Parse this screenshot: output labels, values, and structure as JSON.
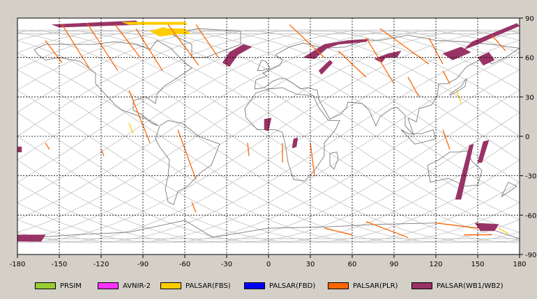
{
  "map": {
    "lon_ticks": [
      "-180",
      "-150",
      "-120",
      "-90",
      "-60",
      "-30",
      "0",
      "30",
      "60",
      "90",
      "120",
      "150",
      "180"
    ],
    "lat_ticks": [
      "90",
      "60",
      "30",
      "0",
      "-30",
      "-60",
      "-90"
    ],
    "colors": {
      "background": "#d4d0c8",
      "plot": "#ffffff",
      "grid": "#000000",
      "orbit_track": "#c0c0c0",
      "coastline": "#7a7a7a"
    }
  },
  "legend": {
    "items": [
      {
        "label": "PRSIM",
        "color": "#99cc33"
      },
      {
        "label": "AVNIR-2",
        "color": "#ff33ff"
      },
      {
        "label": "PALSAR(FBS)",
        "color": "#ffcc00"
      },
      {
        "label": "PALSAR(FBD)",
        "color": "#0000ff"
      },
      {
        "label": "PALSAR(PLR)",
        "color": "#ff6600"
      },
      {
        "label": "PALSAR(WB1/WB2)",
        "color": "#993366"
      }
    ]
  }
}
